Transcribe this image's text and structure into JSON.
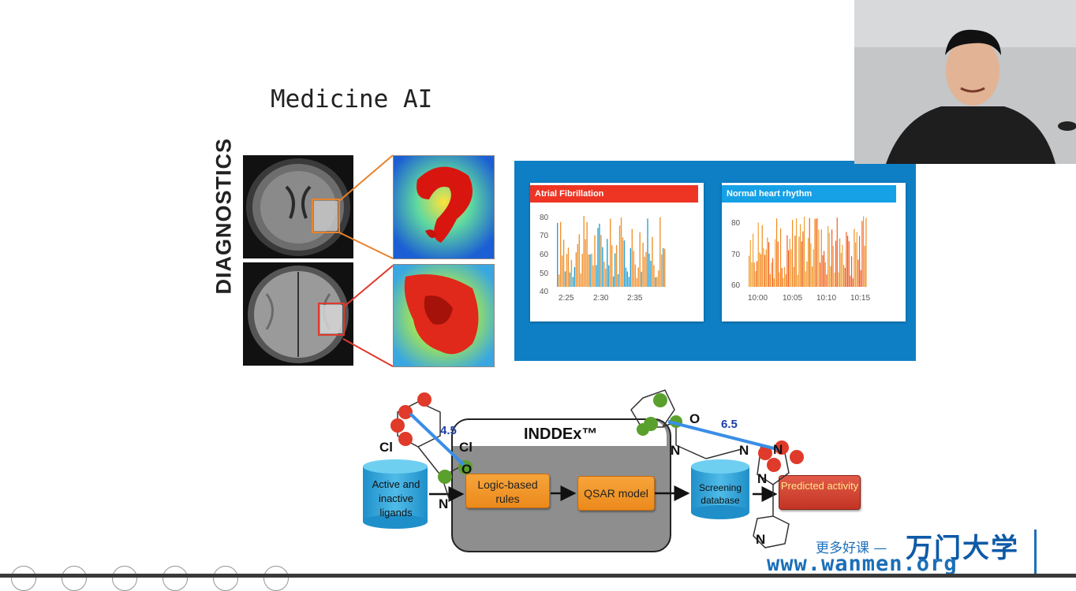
{
  "slide": {
    "title": "Medicine AI",
    "diagnostics_label": "DIAGNOSTICS"
  },
  "ecg": {
    "panel_color": "#0e7fc4",
    "afib": {
      "title": "Atrial Fibrillation",
      "header_color": "#ee3524",
      "y_ticks": [
        "80",
        "70",
        "60",
        "50",
        "40"
      ],
      "x_ticks": [
        "2:25",
        "2:30",
        "2:35"
      ]
    },
    "normal": {
      "title": "Normal heart rhythm",
      "header_color": "#16a1e7",
      "y_ticks": [
        "80",
        "70",
        "60"
      ],
      "x_ticks": [
        "10:00",
        "10:05",
        "10:10",
        "10:15"
      ]
    }
  },
  "inddex": {
    "title": "INDDEx™",
    "active_ligands": "Active and inactive ligands",
    "logic_rules": "Logic-based rules",
    "qsar": "QSAR model",
    "screening_db": "Screening database",
    "predicted": "Predicted activity",
    "dist1": "4.5",
    "dist2": "6.5",
    "cl1": "Cl",
    "cl2": "Cl",
    "n1": "N",
    "n2": "N",
    "n3": "N",
    "n4": "N",
    "n5": "N",
    "n6": "N",
    "o1": "O",
    "o2": "O"
  },
  "watermark": {
    "chinese": "更多好课 —",
    "brand": "万门大学",
    "url": "www.wanmen.org"
  }
}
